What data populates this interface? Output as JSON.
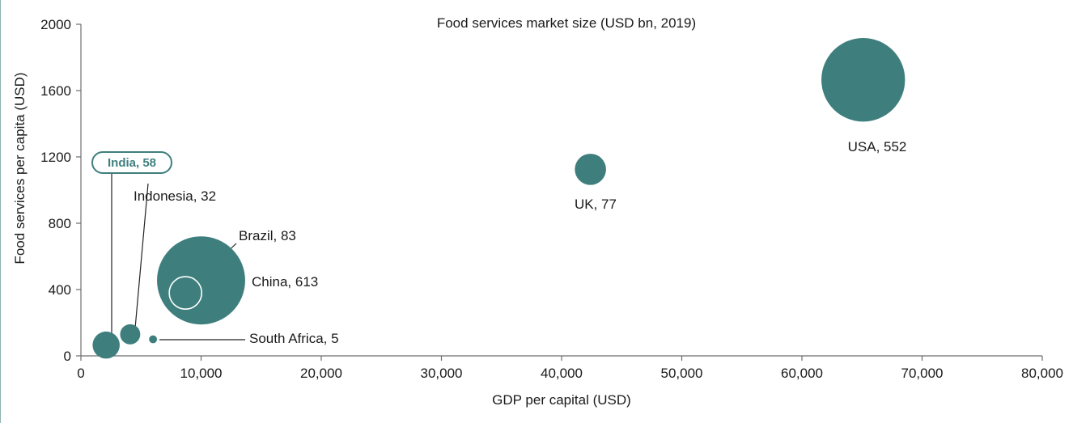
{
  "chart_data": {
    "type": "scatter",
    "subtype": "bubble",
    "title": "Food services market size (USD bn, 2019)",
    "xlabel": "GDP per capital (USD)",
    "ylabel": "Food services per capita (USD)",
    "xlim": [
      0,
      80000
    ],
    "ylim": [
      0,
      2000
    ],
    "x_ticks": [
      "0",
      "10,000",
      "20,000",
      "30,000",
      "40,000",
      "50,000",
      "60,000",
      "70,000",
      "80,000"
    ],
    "y_ticks": [
      "0",
      "400",
      "800",
      "1200",
      "1600",
      "2000"
    ],
    "grid": false,
    "bubble_color": "#3e7f7e",
    "highlight_color": "#3e7f7e",
    "points": [
      {
        "country": "USA",
        "x": 65100,
        "y": 1665,
        "size": 552,
        "label": "USA, 552"
      },
      {
        "country": "UK",
        "x": 42400,
        "y": 1125,
        "size": 77,
        "label": "UK, 77"
      },
      {
        "country": "China",
        "x": 10000,
        "y": 455,
        "size": 613,
        "label": "China, 613"
      },
      {
        "country": "Brazil",
        "x": 8700,
        "y": 380,
        "size": 83,
        "label": "Brazil, 83"
      },
      {
        "country": "India",
        "x": 2100,
        "y": 65,
        "size": 58,
        "label": "India, 58"
      },
      {
        "country": "Indonesia",
        "x": 4100,
        "y": 130,
        "size": 32,
        "label": "Indonesia, 32"
      },
      {
        "country": "South Africa",
        "x": 6000,
        "y": 100,
        "size": 5,
        "label": "South Africa, 5"
      }
    ]
  }
}
